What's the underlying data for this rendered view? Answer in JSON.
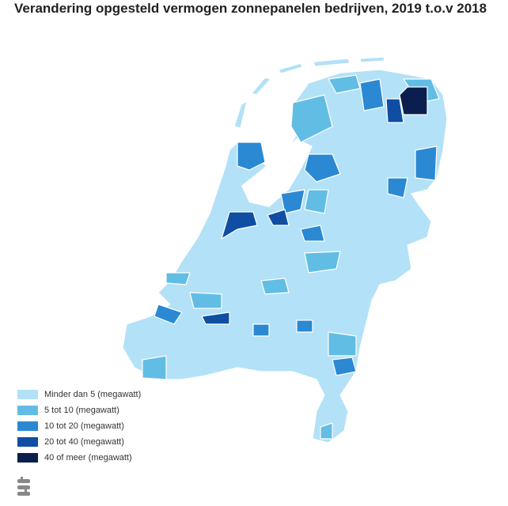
{
  "header": {
    "title": "Verandering opgesteld vermogen zonnepanelen bedrijven, 2019 t.o.v 2018"
  },
  "legend": {
    "items": [
      {
        "label": "Minder dan 5 (megawatt)",
        "color": "#b3e1f7"
      },
      {
        "label": "5 tot 10 (megawatt)",
        "color": "#62bde4"
      },
      {
        "label": "10 tot 20 (megawatt)",
        "color": "#2b88d3"
      },
      {
        "label": "20 tot 40 (megawatt)",
        "color": "#0f4ea3"
      },
      {
        "label": "40 of meer (megawatt)",
        "color": "#0a1f4e"
      }
    ]
  }
}
